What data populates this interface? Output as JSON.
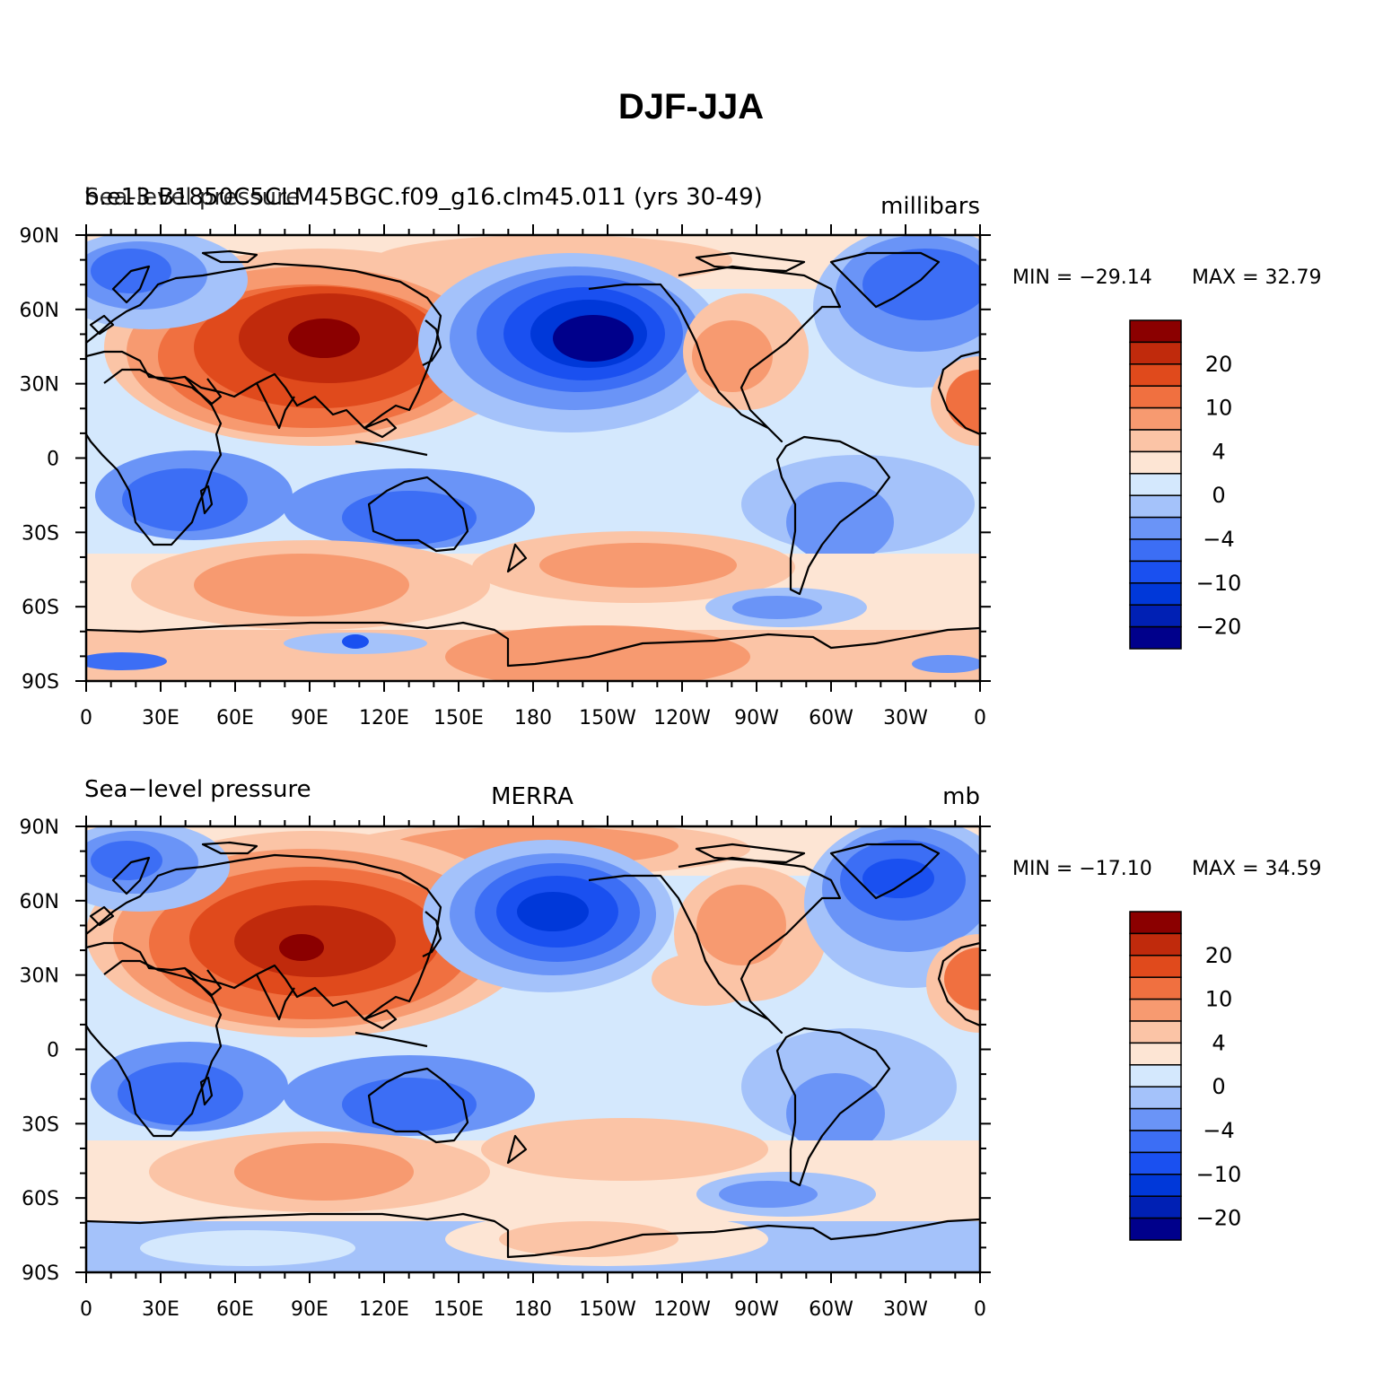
{
  "title": "DJF-JJA",
  "colors": [
    "#00008b",
    "#0020b4",
    "#0038d9",
    "#1a50f0",
    "#3c6ef5",
    "#6a94f7",
    "#a4c2fa",
    "#d4e8fd",
    "#fde5d4",
    "#fbc4a6",
    "#f79a70",
    "#f07040",
    "#e04a1c",
    "#c02a0c",
    "#8b0000"
  ],
  "colorbar_labels": [
    "20",
    "10",
    "4",
    "0",
    "−4",
    "−10",
    "−20"
  ],
  "x_ticks": [
    "0",
    "30E",
    "60E",
    "90E",
    "120E",
    "150E",
    "180",
    "150W",
    "120W",
    "90W",
    "60W",
    "30W",
    "0"
  ],
  "y_ticks": [
    "90N",
    "60N",
    "30N",
    "0",
    "30S",
    "60S",
    "90S"
  ],
  "panels": [
    {
      "left_label_1": "b.e13.B1850C5CLM45BGC.f09_g16.clm45.011 (yrs 30-49)",
      "left_label_2": "Sea-level pressure",
      "center_label": "",
      "right_label": "millibars",
      "min_label": "MIN = −29.14",
      "max_label": "MAX =   32.79"
    },
    {
      "left_label_1": "",
      "left_label_2": "Sea−level pressure",
      "center_label": "MERRA",
      "right_label": "mb",
      "min_label": "MIN = −17.10",
      "max_label": "MAX =   34.59"
    }
  ]
}
